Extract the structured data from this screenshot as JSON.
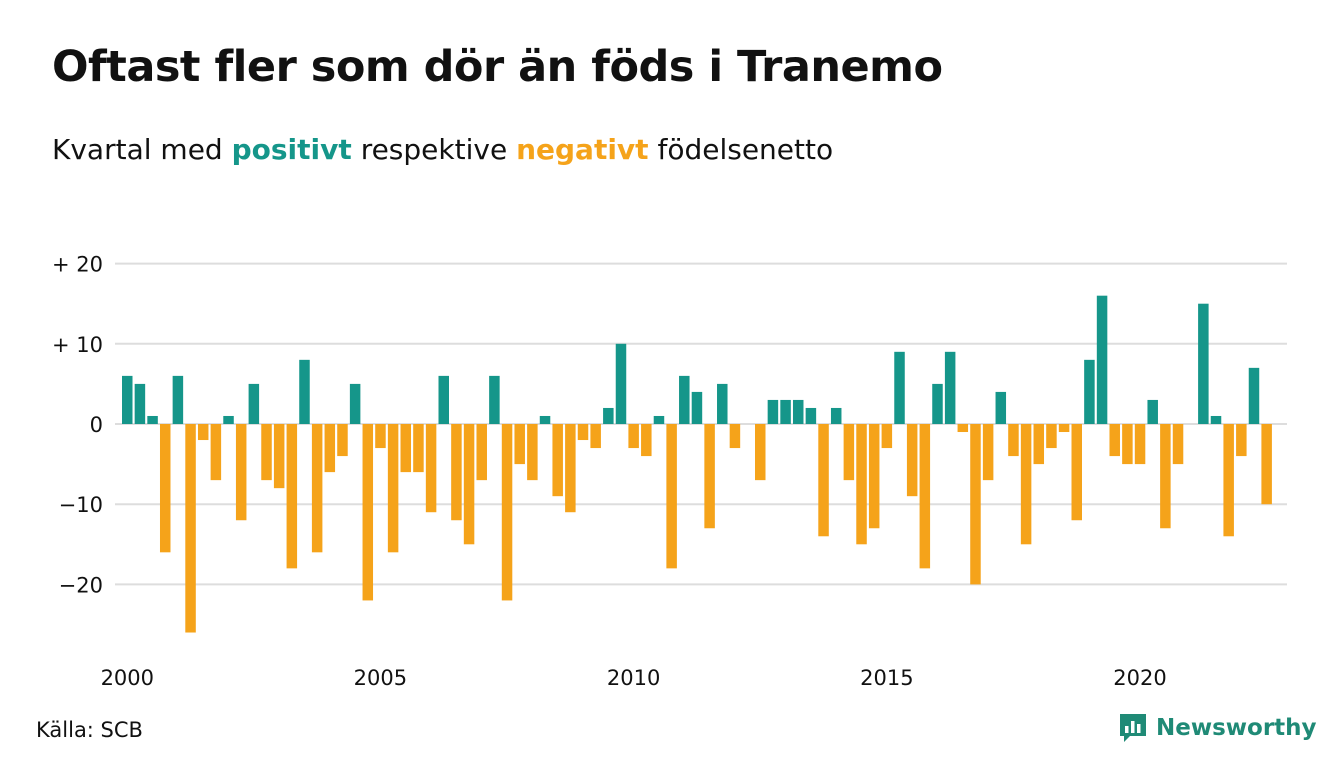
{
  "title": "Oftast fler som dör än föds i Tranemo",
  "subtitle": {
    "before": "Kvartal med",
    "positive": "positivt",
    "middle": "respektive",
    "negative": "negativt",
    "after": "födelsenetto"
  },
  "source": "Källa: SCB",
  "brand": "Newsworthy",
  "colors": {
    "positive": "#15968a",
    "negative": "#f5a31a",
    "grid": "#dddddd",
    "brand": "#1f8a76"
  },
  "chart_data": {
    "type": "bar",
    "ylim": [
      -26,
      20
    ],
    "yticks": [
      {
        "value": 20,
        "label": "+ 20"
      },
      {
        "value": 10,
        "label": "+ 10"
      },
      {
        "value": 0,
        "label": "0"
      },
      {
        "value": -10,
        "label": "−10"
      },
      {
        "value": -20,
        "label": "−20"
      }
    ],
    "xticks": [
      {
        "year": 2000,
        "label": "2000"
      },
      {
        "year": 2005,
        "label": "2005"
      },
      {
        "year": 2010,
        "label": "2010"
      },
      {
        "year": 2015,
        "label": "2015"
      },
      {
        "year": 2020,
        "label": "2020"
      }
    ],
    "start_year": 2000,
    "values": [
      6,
      5,
      1,
      -16,
      6,
      -26,
      -2,
      -7,
      1,
      -12,
      5,
      -7,
      -8,
      -18,
      8,
      -16,
      -6,
      -4,
      5,
      -22,
      -3,
      -16,
      -6,
      -6,
      -11,
      6,
      -12,
      -15,
      -7,
      6,
      -22,
      -5,
      -7,
      1,
      -9,
      -11,
      -2,
      -3,
      2,
      10,
      -3,
      -4,
      1,
      -18,
      6,
      4,
      -13,
      5,
      -3,
      0,
      -7,
      3,
      3,
      3,
      2,
      -14,
      2,
      -7,
      -15,
      -13,
      -3,
      9,
      -9,
      -18,
      5,
      9,
      -1,
      -20,
      -7,
      4,
      -4,
      -15,
      -5,
      -3,
      -1,
      -12,
      8,
      16,
      -4,
      -5,
      -5,
      3,
      -13,
      -5,
      0,
      15,
      1,
      -14,
      -4,
      7,
      -10
    ]
  }
}
